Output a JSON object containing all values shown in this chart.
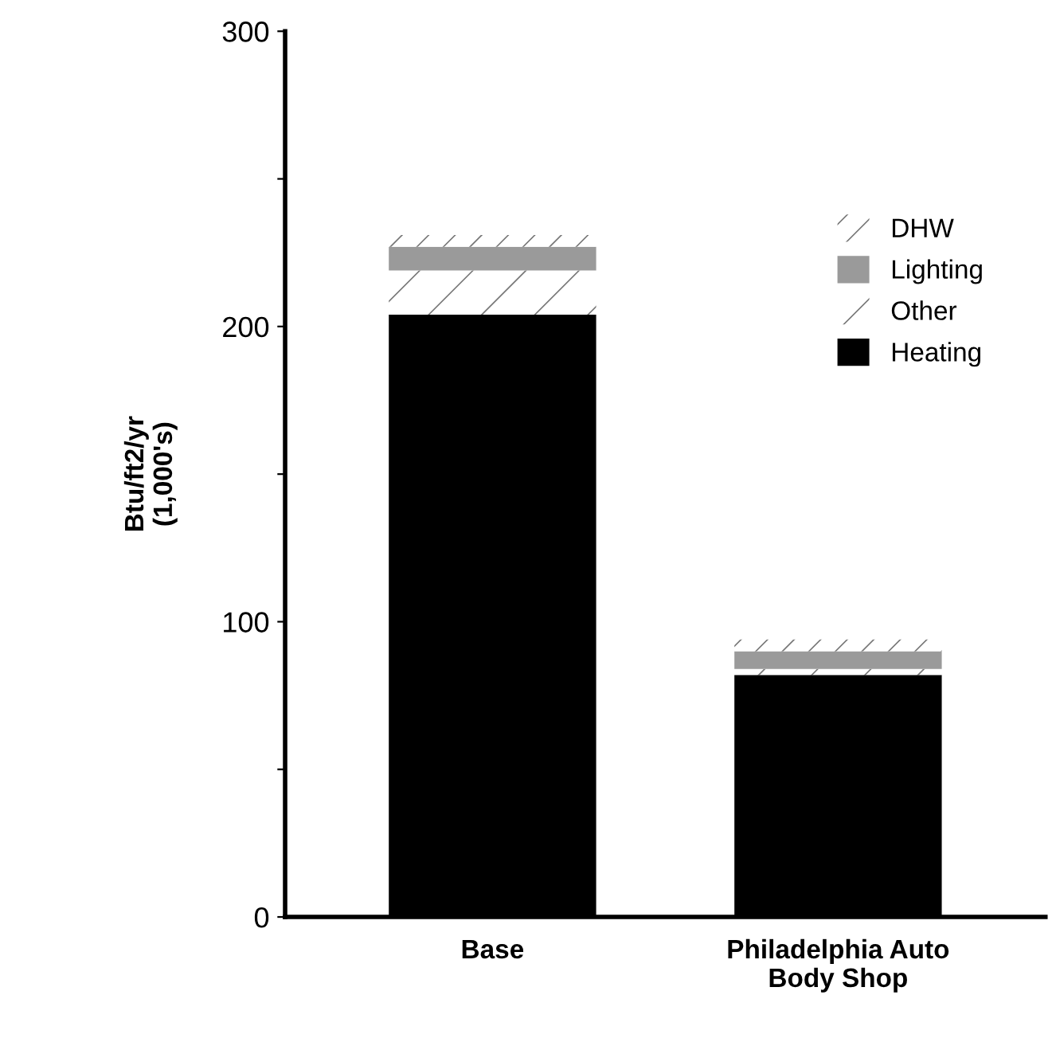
{
  "chart_data": {
    "type": "bar",
    "stacked": true,
    "ylabel": "Btu/ft2/yr\n(1,000's)",
    "categories": [
      "Base",
      "Philadelphia Auto\nBody Shop"
    ],
    "series": [
      {
        "name": "Heating",
        "color": "#000000",
        "values": [
          204,
          82
        ]
      },
      {
        "name": "Other",
        "color": "#ffffff",
        "values": [
          15,
          2
        ]
      },
      {
        "name": "Lighting",
        "color": "#9a9a9a",
        "values": [
          8,
          6
        ]
      },
      {
        "name": "DHW",
        "color": "#ffffff",
        "values": [
          4,
          4
        ]
      }
    ],
    "ylim": [
      0,
      300
    ],
    "yticks": [
      0,
      {
        "value": 50,
        "label": null
      },
      100,
      {
        "value": 150,
        "label": null
      },
      200,
      {
        "value": 250,
        "label": null
      },
      300
    ],
    "grid": false,
    "legend": "top right"
  }
}
